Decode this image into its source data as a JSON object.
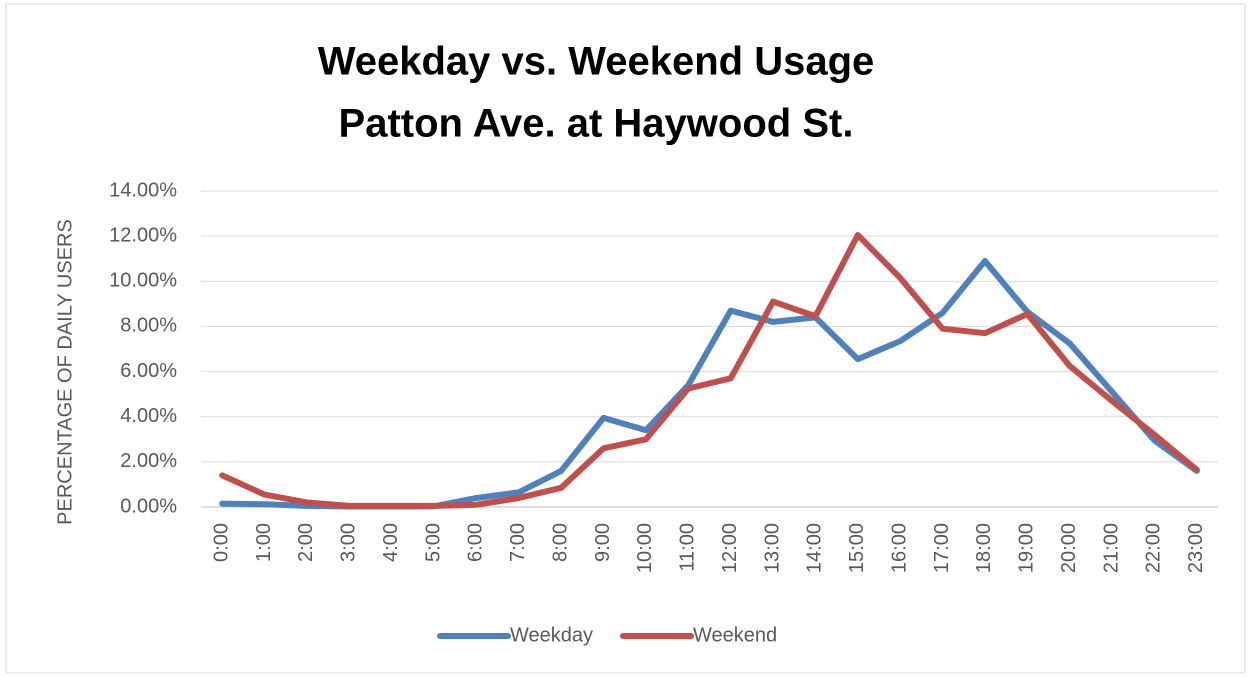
{
  "chart_data": {
    "type": "line",
    "title": "Weekday vs. Weekend Usage",
    "subtitle": "Patton Ave. at Haywood St.",
    "y_label": "PERCENTAGE OF DAILY USERS",
    "categories": [
      "0:00",
      "1:00",
      "2:00",
      "3:00",
      "4:00",
      "5:00",
      "6:00",
      "7:00",
      "8:00",
      "9:00",
      "10:00",
      "11:00",
      "12:00",
      "13:00",
      "14:00",
      "15:00",
      "16:00",
      "17:00",
      "18:00",
      "19:00",
      "20:00",
      "21:00",
      "22:00",
      "23:00"
    ],
    "series": [
      {
        "name": "Weekday",
        "color": "#4f81bd",
        "values": [
          0.15,
          0.12,
          0.05,
          0.02,
          0.02,
          0.03,
          0.4,
          0.65,
          1.6,
          3.95,
          3.4,
          5.4,
          8.7,
          8.2,
          8.4,
          6.55,
          7.35,
          8.6,
          10.9,
          8.65,
          7.25,
          5.1,
          2.95,
          1.6
        ]
      },
      {
        "name": "Weekend",
        "color": "#c0504d",
        "values": [
          1.4,
          0.55,
          0.2,
          0.05,
          0.05,
          0.05,
          0.1,
          0.4,
          0.85,
          2.6,
          3.0,
          5.25,
          5.7,
          9.1,
          8.45,
          12.05,
          10.15,
          7.9,
          7.7,
          8.55,
          6.25,
          4.7,
          3.2,
          1.65
        ]
      }
    ],
    "ylim": [
      0,
      14
    ],
    "yticks": [
      {
        "value": 0,
        "label": "0.00%"
      },
      {
        "value": 2,
        "label": "2.00%"
      },
      {
        "value": 4,
        "label": "4.00%"
      },
      {
        "value": 6,
        "label": "6.00%"
      },
      {
        "value": 8,
        "label": "8.00%"
      },
      {
        "value": 10,
        "label": "10.00%"
      },
      {
        "value": 12,
        "label": "12.00%"
      },
      {
        "value": 14,
        "label": "14.00%"
      }
    ],
    "grid": true,
    "legend": "bottom"
  }
}
